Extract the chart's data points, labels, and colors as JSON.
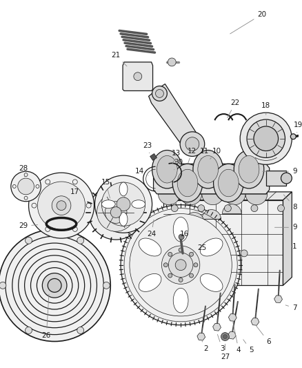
{
  "bg": "#ffffff",
  "lc": "#1a1a1a",
  "lw_main": 0.9,
  "lw_thin": 0.5,
  "label_fs": 7.5,
  "label_color": "#1a1a1a",
  "leader_color": "#888888",
  "leader_lw": 0.6
}
